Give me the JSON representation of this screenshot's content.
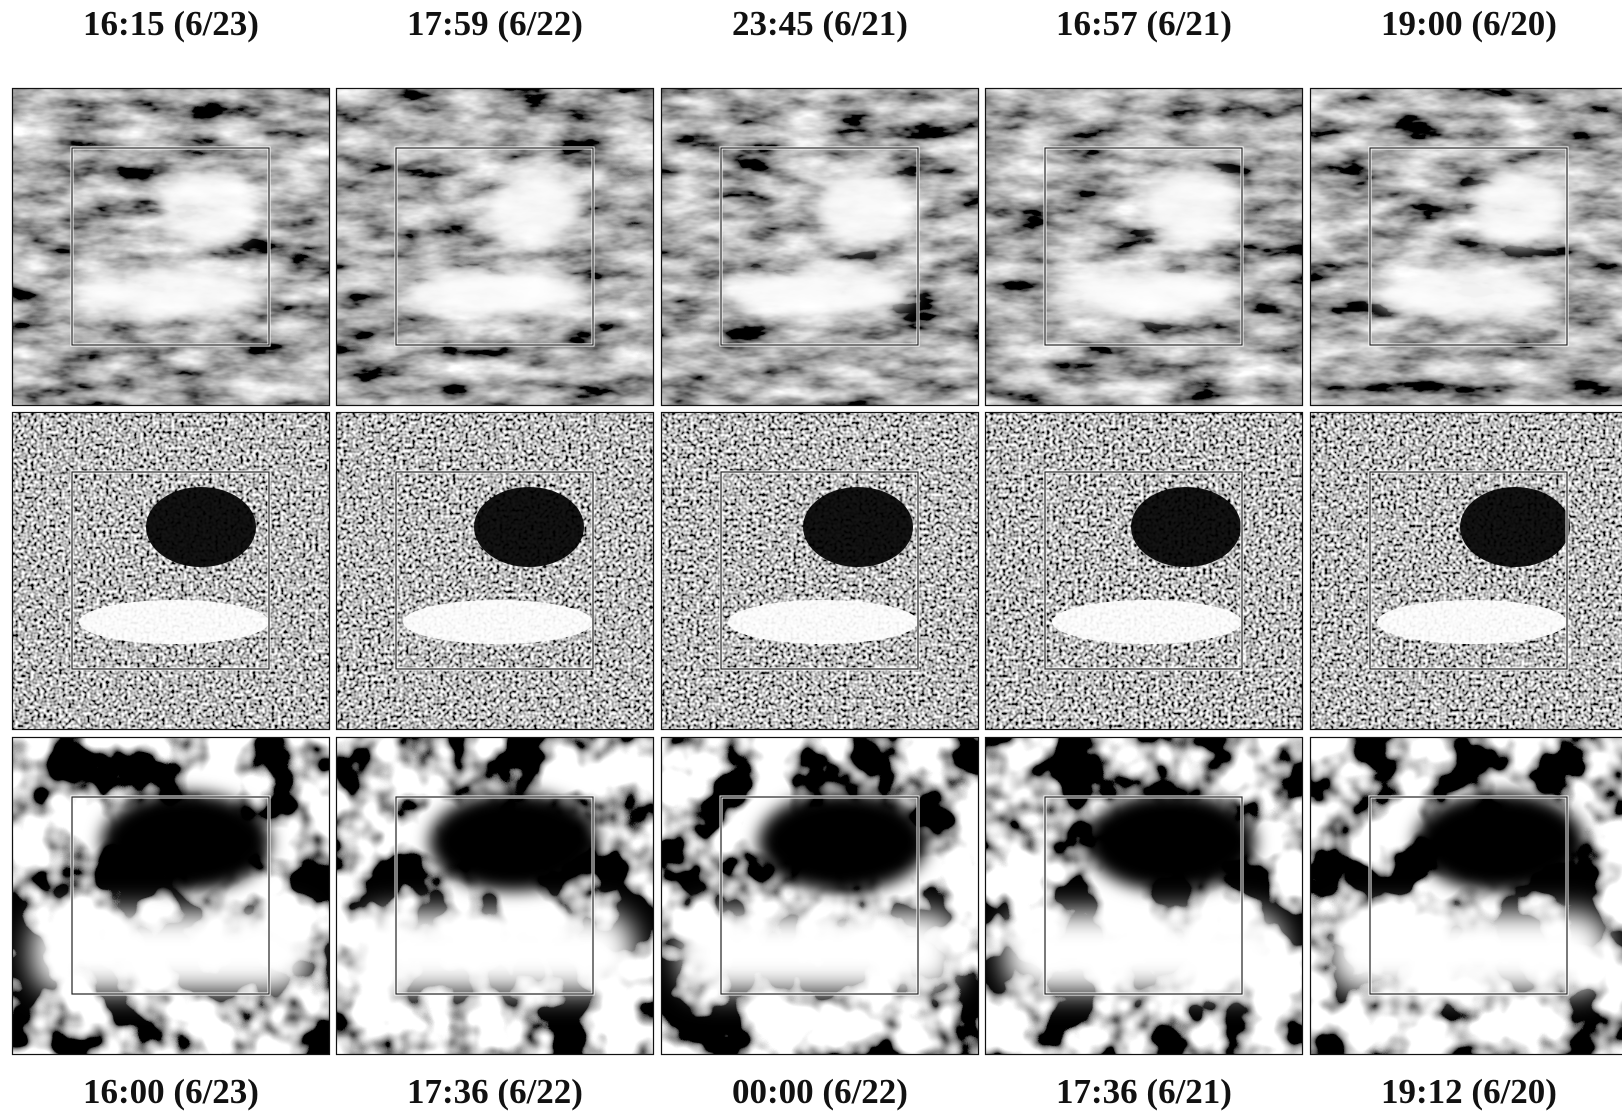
{
  "top_labels": [
    "16:15  (6/23)",
    "17:59  (6/22)",
    "23:45  (6/21)",
    "16:57  (6/21)",
    "19:00  (6/20)"
  ],
  "bottom_labels": [
    "16:00  (6/23)",
    "17:36  (6/22)",
    "00:00  (6/22)",
    "17:36  (6/21)",
    "19:12  (6/20)"
  ]
}
